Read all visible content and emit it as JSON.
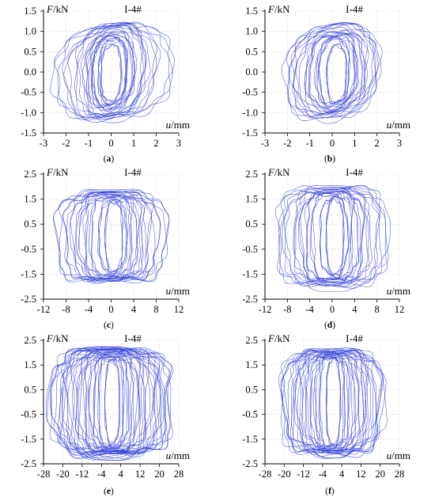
{
  "colors": {
    "curve": "#2d3cd6"
  },
  "chart_data": [
    {
      "panel": "(a)",
      "type": "line",
      "specimen_label": "I-4#",
      "ylabel": "F/kN",
      "xlabel": "u/mm",
      "xlim": [
        -3,
        3
      ],
      "ylim": [
        -1.5,
        1.5
      ],
      "xticks": [
        "-3",
        "-2",
        "-1",
        "0",
        "1",
        "2",
        "3"
      ],
      "yticks": [
        "1.5",
        "1.0",
        "0.5",
        "0.0",
        "-0.5",
        "-1.0",
        "-1.5"
      ],
      "grid": true,
      "series": [
        {
          "loops": [
            {
              "cx": 0.0,
              "cy": -0.03,
              "a": 0.45,
              "b": 0.7,
              "tilt": 0.15
            },
            {
              "cx": 0.05,
              "cy": 0.0,
              "a": 0.6,
              "b": 0.8,
              "tilt": 0.18
            },
            {
              "cx": -0.05,
              "cy": 0.02,
              "a": 0.75,
              "b": 0.85,
              "tilt": 0.2
            },
            {
              "cx": 0.05,
              "cy": 0.0,
              "a": 0.9,
              "b": 0.9,
              "tilt": 0.22
            },
            {
              "cx": 0.0,
              "cy": 0.02,
              "a": 1.05,
              "b": 0.95,
              "tilt": 0.25
            },
            {
              "cx": 0.1,
              "cy": 0.0,
              "a": 1.3,
              "b": 1.05,
              "tilt": 0.3
            },
            {
              "cx": 0.0,
              "cy": 0.05,
              "a": 1.55,
              "b": 1.1,
              "tilt": 0.32
            },
            {
              "cx": 0.0,
              "cy": 0.0,
              "a": 2.0,
              "b": 1.1,
              "tilt": 0.35
            },
            {
              "cx": 0.1,
              "cy": 0.0,
              "a": 2.6,
              "b": 1.15,
              "tilt": 0.25
            }
          ]
        }
      ]
    },
    {
      "panel": "(b)",
      "type": "line",
      "specimen_label": "I-4#",
      "ylabel": "F/kN",
      "xlabel": "u/mm",
      "xlim": [
        -3,
        3
      ],
      "ylim": [
        -1.5,
        1.5
      ],
      "xticks": [
        "-3",
        "-2",
        "-1",
        "0",
        "1",
        "2",
        "3"
      ],
      "yticks": [
        "1.5",
        "1.0",
        "0.5",
        "0.0",
        "-0.5",
        "-1.0",
        "-1.5"
      ],
      "grid": true,
      "series": [
        {
          "loops": [
            {
              "cx": 0.2,
              "cy": -0.05,
              "a": 0.45,
              "b": 0.7,
              "tilt": 0.15
            },
            {
              "cx": 0.1,
              "cy": 0.0,
              "a": 0.65,
              "b": 0.8,
              "tilt": 0.18
            },
            {
              "cx": 0.15,
              "cy": 0.0,
              "a": 0.85,
              "b": 0.85,
              "tilt": 0.2
            },
            {
              "cx": 0.05,
              "cy": 0.02,
              "a": 1.05,
              "b": 0.9,
              "tilt": 0.25
            },
            {
              "cx": 0.1,
              "cy": 0.0,
              "a": 1.3,
              "b": 0.95,
              "tilt": 0.28
            },
            {
              "cx": 0.0,
              "cy": 0.0,
              "a": 1.55,
              "b": 1.0,
              "tilt": 0.3
            },
            {
              "cx": 0.05,
              "cy": 0.05,
              "a": 1.8,
              "b": 1.1,
              "tilt": 0.3
            },
            {
              "cx": 0.0,
              "cy": 0.0,
              "a": 2.05,
              "b": 1.15,
              "tilt": 0.28
            }
          ]
        }
      ]
    },
    {
      "panel": "(c)",
      "type": "line",
      "specimen_label": "I-4#",
      "ylabel": "F/kN",
      "xlabel": "u/mm",
      "xlim": [
        -12,
        12
      ],
      "ylim": [
        -2.5,
        2.5
      ],
      "xticks": [
        "-12",
        "-8",
        "-4",
        "0",
        "4",
        "8",
        "12"
      ],
      "yticks": [
        "2.5",
        "1.5",
        "0.5",
        "-0.5",
        "-1.5",
        "-2.5"
      ],
      "grid": true,
      "series": [
        {
          "loops": [
            {
              "cx": 0.5,
              "cy": 0.0,
              "a": 1.5,
              "b": 1.4,
              "tilt": 0.02
            },
            {
              "cx": 0.3,
              "cy": 0.0,
              "a": 2.5,
              "b": 1.5,
              "tilt": 0.02
            },
            {
              "cx": 0.0,
              "cy": 0.0,
              "a": 3.5,
              "b": 1.55,
              "tilt": 0.02
            },
            {
              "cx": 0.0,
              "cy": 0.0,
              "a": 4.5,
              "b": 1.6,
              "tilt": 0.02
            },
            {
              "cx": 0.0,
              "cy": 0.0,
              "a": 5.5,
              "b": 1.65,
              "tilt": 0.02
            },
            {
              "cx": 0.0,
              "cy": 0.0,
              "a": 6.5,
              "b": 1.7,
              "tilt": 0.02
            },
            {
              "cx": 0.0,
              "cy": 0.0,
              "a": 8.0,
              "b": 1.7,
              "tilt": 0.02
            },
            {
              "cx": 0.0,
              "cy": 0.0,
              "a": 10.0,
              "b": 1.8,
              "tilt": 0.02
            }
          ]
        }
      ]
    },
    {
      "panel": "(d)",
      "type": "line",
      "specimen_label": "I-4#",
      "ylabel": "F/kN",
      "xlabel": "u/mm",
      "xlim": [
        -12,
        12
      ],
      "ylim": [
        -2.5,
        2.5
      ],
      "xticks": [
        "-12",
        "-8",
        "-4",
        "0",
        "4",
        "8",
        "12"
      ],
      "yticks": [
        "2.5",
        "1.5",
        "0.5",
        "-0.5",
        "-1.5",
        "-2.5"
      ],
      "grid": true,
      "series": [
        {
          "loops": [
            {
              "cx": 0.5,
              "cy": 0.0,
              "a": 1.5,
              "b": 1.5,
              "tilt": 0.02
            },
            {
              "cx": 0.3,
              "cy": 0.0,
              "a": 2.5,
              "b": 1.6,
              "tilt": 0.02
            },
            {
              "cx": 0.0,
              "cy": 0.0,
              "a": 3.5,
              "b": 1.7,
              "tilt": 0.02
            },
            {
              "cx": 0.0,
              "cy": 0.0,
              "a": 4.5,
              "b": 1.75,
              "tilt": 0.02
            },
            {
              "cx": 0.0,
              "cy": 0.0,
              "a": 5.5,
              "b": 1.8,
              "tilt": 0.02
            },
            {
              "cx": 0.0,
              "cy": 0.0,
              "a": 6.5,
              "b": 1.85,
              "tilt": 0.02
            },
            {
              "cx": 0.0,
              "cy": 0.0,
              "a": 8.0,
              "b": 1.9,
              "tilt": 0.02
            },
            {
              "cx": 0.0,
              "cy": 0.0,
              "a": 9.5,
              "b": 2.0,
              "tilt": 0.02
            }
          ]
        }
      ]
    },
    {
      "panel": "(e)",
      "type": "line",
      "specimen_label": "I-4#",
      "ylabel": "F/kN",
      "xlabel": "u/mm",
      "xlim": [
        -28,
        28
      ],
      "ylim": [
        -2.5,
        2.5
      ],
      "xticks": [
        "-28",
        "-20",
        "-12",
        "-4",
        "4",
        "12",
        "20",
        "28"
      ],
      "yticks": [
        "2.5",
        "1.5",
        "0.5",
        "-0.5",
        "-1.5",
        "-2.5"
      ],
      "grid": true,
      "series": [
        {
          "loops": [
            {
              "cx": 0.5,
              "cy": 0.0,
              "a": 3.0,
              "b": 1.7,
              "tilt": 0.01
            },
            {
              "cx": 0.0,
              "cy": 0.0,
              "a": 5.0,
              "b": 1.8,
              "tilt": 0.01
            },
            {
              "cx": 0.0,
              "cy": 0.0,
              "a": 7.0,
              "b": 1.85,
              "tilt": 0.01
            },
            {
              "cx": 0.0,
              "cy": 0.0,
              "a": 9.0,
              "b": 1.9,
              "tilt": 0.01
            },
            {
              "cx": 0.0,
              "cy": 0.0,
              "a": 11.0,
              "b": 1.95,
              "tilt": 0.01
            },
            {
              "cx": 0.0,
              "cy": 0.0,
              "a": 13.0,
              "b": 2.0,
              "tilt": 0.01
            },
            {
              "cx": 0.0,
              "cy": 0.0,
              "a": 15.0,
              "b": 2.0,
              "tilt": 0.01
            },
            {
              "cx": 0.0,
              "cy": 0.0,
              "a": 17.0,
              "b": 2.05,
              "tilt": 0.01
            },
            {
              "cx": 0.0,
              "cy": 0.0,
              "a": 19.0,
              "b": 2.05,
              "tilt": 0.01
            },
            {
              "cx": 0.0,
              "cy": 0.0,
              "a": 21.0,
              "b": 2.1,
              "tilt": 0.01
            },
            {
              "cx": 0.0,
              "cy": 0.0,
              "a": 23.0,
              "b": 2.1,
              "tilt": 0.01
            },
            {
              "cx": 0.0,
              "cy": 0.0,
              "a": 25.0,
              "b": 2.15,
              "tilt": 0.01
            }
          ]
        }
      ]
    },
    {
      "panel": "(f)",
      "type": "line",
      "specimen_label": "I-4#",
      "ylabel": "F/kN",
      "xlabel": "u/mm",
      "xlim": [
        -28,
        28
      ],
      "ylim": [
        -2.5,
        2.5
      ],
      "xticks": [
        "-28",
        "-20",
        "-12",
        "-4",
        "4",
        "12",
        "20",
        "28"
      ],
      "yticks": [
        "2.5",
        "1.5",
        "0.5",
        "-0.5",
        "-1.5",
        "-2.5"
      ],
      "grid": true,
      "series": [
        {
          "loops": [
            {
              "cx": 0.5,
              "cy": 0.0,
              "a": 3.0,
              "b": 1.7,
              "tilt": 0.01
            },
            {
              "cx": 0.0,
              "cy": 0.0,
              "a": 5.0,
              "b": 1.8,
              "tilt": 0.01
            },
            {
              "cx": 0.0,
              "cy": 0.0,
              "a": 7.0,
              "b": 1.85,
              "tilt": 0.01
            },
            {
              "cx": 0.0,
              "cy": 0.0,
              "a": 9.0,
              "b": 1.9,
              "tilt": 0.01
            },
            {
              "cx": 0.0,
              "cy": 0.0,
              "a": 11.0,
              "b": 1.95,
              "tilt": 0.01
            },
            {
              "cx": 0.0,
              "cy": 0.0,
              "a": 13.0,
              "b": 2.0,
              "tilt": 0.01
            },
            {
              "cx": 0.0,
              "cy": 0.0,
              "a": 15.0,
              "b": 2.0,
              "tilt": 0.01
            },
            {
              "cx": 0.0,
              "cy": 0.0,
              "a": 17.0,
              "b": 2.05,
              "tilt": 0.01
            },
            {
              "cx": 0.0,
              "cy": 0.0,
              "a": 19.0,
              "b": 2.05,
              "tilt": 0.01
            },
            {
              "cx": 0.0,
              "cy": 0.0,
              "a": 21.0,
              "b": 2.1,
              "tilt": 0.01
            }
          ]
        }
      ]
    }
  ]
}
